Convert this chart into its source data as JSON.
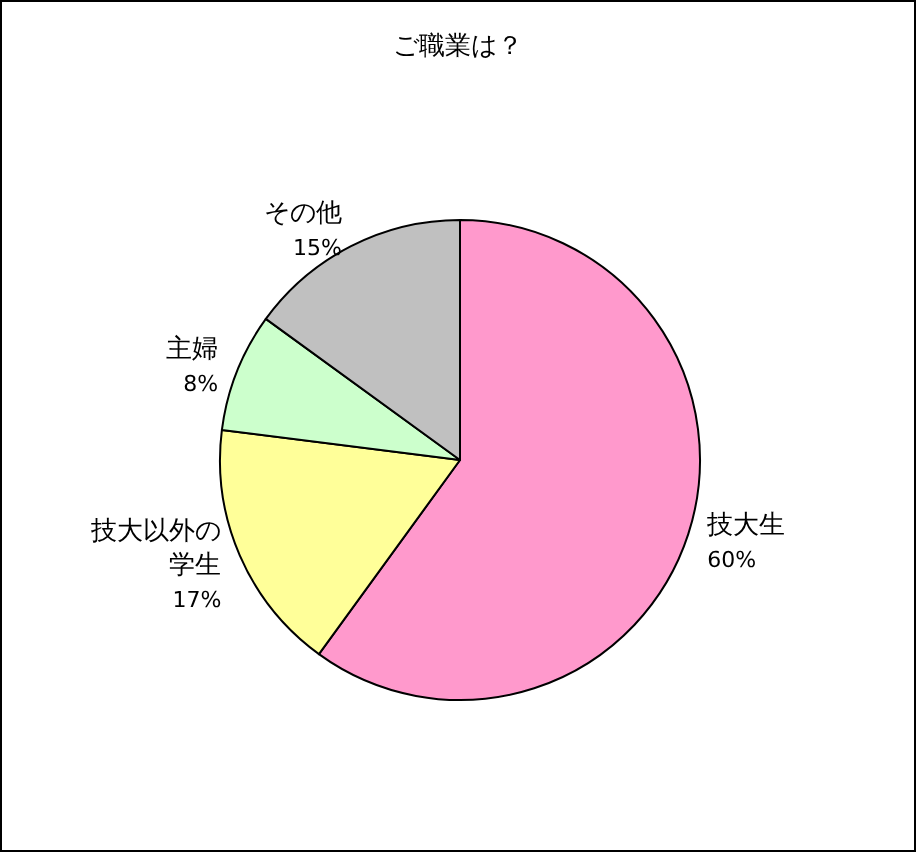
{
  "chart_data": {
    "type": "pie",
    "title": "ご職業は？",
    "categories": [
      "技大生",
      "技大以外の学生",
      "主婦",
      "その他"
    ],
    "values": [
      60,
      17,
      8,
      15
    ],
    "value_labels": [
      "60%",
      "17%",
      "8%",
      "15%"
    ],
    "colors": [
      "#ff99cc",
      "#ffff99",
      "#ccffcc",
      "#c0c0c0"
    ]
  }
}
